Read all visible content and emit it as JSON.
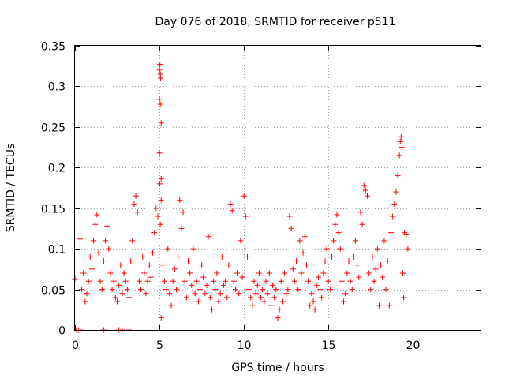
{
  "chart_data": {
    "type": "scatter",
    "title": "Day 076 of 2018, SRMTID for receiver p511",
    "xlabel": "GPS time / hours",
    "ylabel": "SRMTID / TECUs",
    "xlim": [
      0,
      24
    ],
    "ylim": [
      0,
      0.35
    ],
    "xticks": [
      0,
      5,
      10,
      15,
      20
    ],
    "xtick_labels": [
      "0",
      "5",
      "10",
      "15",
      "20"
    ],
    "yticks": [
      0,
      0.05,
      0.1,
      0.15,
      0.2,
      0.25,
      0.3,
      0.35
    ],
    "ytick_labels": [
      "0",
      "0.05",
      "0.1",
      "0.15",
      "0.2",
      "0.25",
      "0.3",
      "0.35"
    ],
    "grid": true,
    "marker": "+",
    "color": "#ff0000",
    "series": [
      {
        "name": "SRMTID",
        "points": [
          [
            0.1,
            0.0
          ],
          [
            0.2,
            0.0
          ],
          [
            0.3,
            0.0
          ],
          [
            1.7,
            0.0
          ],
          [
            2.6,
            0.0
          ],
          [
            2.8,
            0.0
          ],
          [
            3.2,
            0.0
          ],
          [
            0.0,
            0.063
          ],
          [
            0.3,
            0.112
          ],
          [
            0.4,
            0.05
          ],
          [
            0.5,
            0.07
          ],
          [
            0.6,
            0.035
          ],
          [
            0.7,
            0.045
          ],
          [
            0.8,
            0.06
          ],
          [
            0.9,
            0.09
          ],
          [
            1.0,
            0.075
          ],
          [
            1.1,
            0.11
          ],
          [
            1.2,
            0.13
          ],
          [
            1.3,
            0.142
          ],
          [
            1.4,
            0.095
          ],
          [
            1.5,
            0.06
          ],
          [
            1.6,
            0.05
          ],
          [
            1.7,
            0.085
          ],
          [
            1.8,
            0.11
          ],
          [
            1.9,
            0.128
          ],
          [
            2.0,
            0.1
          ],
          [
            2.1,
            0.07
          ],
          [
            2.2,
            0.05
          ],
          [
            2.3,
            0.06
          ],
          [
            2.4,
            0.04
          ],
          [
            2.5,
            0.035
          ],
          [
            2.6,
            0.055
          ],
          [
            2.7,
            0.08
          ],
          [
            2.8,
            0.045
          ],
          [
            2.9,
            0.07
          ],
          [
            3.0,
            0.06
          ],
          [
            3.1,
            0.05
          ],
          [
            3.2,
            0.04
          ],
          [
            3.3,
            0.085
          ],
          [
            3.4,
            0.11
          ],
          [
            3.5,
            0.155
          ],
          [
            3.6,
            0.165
          ],
          [
            3.7,
            0.145
          ],
          [
            3.8,
            0.06
          ],
          [
            3.9,
            0.05
          ],
          [
            4.0,
            0.09
          ],
          [
            4.1,
            0.07
          ],
          [
            4.2,
            0.045
          ],
          [
            4.3,
            0.06
          ],
          [
            4.4,
            0.08
          ],
          [
            4.5,
            0.065
          ],
          [
            4.6,
            0.095
          ],
          [
            4.7,
            0.12
          ],
          [
            4.8,
            0.15
          ],
          [
            4.9,
            0.14
          ],
          [
            5.0,
            0.32
          ],
          [
            5.03,
            0.327
          ],
          [
            5.05,
            0.315
          ],
          [
            5.07,
            0.31
          ],
          [
            5.0,
            0.284
          ],
          [
            5.05,
            0.278
          ],
          [
            5.1,
            0.255
          ],
          [
            5.0,
            0.218
          ],
          [
            5.02,
            0.18
          ],
          [
            5.1,
            0.186
          ],
          [
            5.1,
            0.16
          ],
          [
            5.05,
            0.13
          ],
          [
            5.1,
            0.015
          ],
          [
            5.2,
            0.08
          ],
          [
            5.3,
            0.06
          ],
          [
            5.4,
            0.05
          ],
          [
            5.5,
            0.1
          ],
          [
            5.6,
            0.045
          ],
          [
            5.7,
            0.03
          ],
          [
            5.8,
            0.06
          ],
          [
            5.9,
            0.075
          ],
          [
            6.0,
            0.05
          ],
          [
            6.1,
            0.09
          ],
          [
            6.2,
            0.16
          ],
          [
            6.3,
            0.125
          ],
          [
            6.4,
            0.145
          ],
          [
            6.5,
            0.06
          ],
          [
            6.6,
            0.04
          ],
          [
            6.7,
            0.085
          ],
          [
            6.8,
            0.07
          ],
          [
            6.9,
            0.055
          ],
          [
            7.0,
            0.1
          ],
          [
            7.1,
            0.045
          ],
          [
            7.2,
            0.06
          ],
          [
            7.3,
            0.035
          ],
          [
            7.4,
            0.05
          ],
          [
            7.5,
            0.08
          ],
          [
            7.6,
            0.065
          ],
          [
            7.7,
            0.045
          ],
          [
            7.8,
            0.055
          ],
          [
            7.9,
            0.115
          ],
          [
            8.0,
            0.04
          ],
          [
            8.1,
            0.025
          ],
          [
            8.2,
            0.06
          ],
          [
            8.3,
            0.05
          ],
          [
            8.4,
            0.07
          ],
          [
            8.5,
            0.035
          ],
          [
            8.6,
            0.045
          ],
          [
            8.7,
            0.09
          ],
          [
            8.8,
            0.055
          ],
          [
            8.9,
            0.06
          ],
          [
            9.0,
            0.04
          ],
          [
            9.1,
            0.08
          ],
          [
            9.2,
            0.155
          ],
          [
            9.3,
            0.147
          ],
          [
            9.4,
            0.06
          ],
          [
            9.5,
            0.05
          ],
          [
            9.6,
            0.07
          ],
          [
            9.7,
            0.045
          ],
          [
            9.8,
            0.11
          ],
          [
            9.9,
            0.065
          ],
          [
            10.0,
            0.165
          ],
          [
            10.1,
            0.14
          ],
          [
            10.2,
            0.09
          ],
          [
            10.3,
            0.05
          ],
          [
            10.4,
            0.04
          ],
          [
            10.5,
            0.03
          ],
          [
            10.6,
            0.06
          ],
          [
            10.7,
            0.045
          ],
          [
            10.8,
            0.055
          ],
          [
            10.9,
            0.07
          ],
          [
            11.0,
            0.04
          ],
          [
            11.1,
            0.05
          ],
          [
            11.2,
            0.035
          ],
          [
            11.3,
            0.06
          ],
          [
            11.4,
            0.045
          ],
          [
            11.5,
            0.07
          ],
          [
            11.6,
            0.03
          ],
          [
            11.7,
            0.055
          ],
          [
            11.8,
            0.04
          ],
          [
            11.9,
            0.05
          ],
          [
            12.0,
            0.015
          ],
          [
            12.1,
            0.025
          ],
          [
            12.2,
            0.06
          ],
          [
            12.3,
            0.035
          ],
          [
            12.4,
            0.07
          ],
          [
            12.5,
            0.045
          ],
          [
            12.6,
            0.05
          ],
          [
            12.7,
            0.14
          ],
          [
            12.8,
            0.125
          ],
          [
            12.9,
            0.075
          ],
          [
            13.0,
            0.06
          ],
          [
            13.1,
            0.085
          ],
          [
            13.2,
            0.05
          ],
          [
            13.3,
            0.11
          ],
          [
            13.4,
            0.07
          ],
          [
            13.5,
            0.095
          ],
          [
            13.6,
            0.115
          ],
          [
            13.7,
            0.08
          ],
          [
            13.8,
            0.06
          ],
          [
            13.9,
            0.03
          ],
          [
            14.0,
            0.045
          ],
          [
            14.1,
            0.035
          ],
          [
            14.2,
            0.025
          ],
          [
            14.3,
            0.055
          ],
          [
            14.4,
            0.065
          ],
          [
            14.5,
            0.05
          ],
          [
            14.6,
            0.04
          ],
          [
            14.7,
            0.07
          ],
          [
            14.8,
            0.085
          ],
          [
            14.9,
            0.1
          ],
          [
            15.0,
            0.06
          ],
          [
            15.1,
            0.05
          ],
          [
            15.2,
            0.09
          ],
          [
            15.3,
            0.11
          ],
          [
            15.4,
            0.13
          ],
          [
            15.5,
            0.142
          ],
          [
            15.6,
            0.12
          ],
          [
            15.7,
            0.1
          ],
          [
            15.8,
            0.06
          ],
          [
            15.9,
            0.035
          ],
          [
            16.0,
            0.045
          ],
          [
            16.1,
            0.07
          ],
          [
            16.2,
            0.085
          ],
          [
            16.3,
            0.06
          ],
          [
            16.4,
            0.05
          ],
          [
            16.5,
            0.09
          ],
          [
            16.6,
            0.11
          ],
          [
            16.7,
            0.08
          ],
          [
            16.8,
            0.065
          ],
          [
            16.9,
            0.145
          ],
          [
            17.0,
            0.13
          ],
          [
            17.1,
            0.178
          ],
          [
            17.2,
            0.172
          ],
          [
            17.3,
            0.165
          ],
          [
            17.4,
            0.07
          ],
          [
            17.5,
            0.05
          ],
          [
            17.6,
            0.09
          ],
          [
            17.7,
            0.06
          ],
          [
            17.8,
            0.075
          ],
          [
            17.9,
            0.1
          ],
          [
            18.0,
            0.03
          ],
          [
            18.1,
            0.08
          ],
          [
            18.2,
            0.065
          ],
          [
            18.3,
            0.11
          ],
          [
            18.4,
            0.05
          ],
          [
            18.5,
            0.085
          ],
          [
            18.6,
            0.03
          ],
          [
            18.7,
            0.12
          ],
          [
            18.8,
            0.14
          ],
          [
            18.9,
            0.155
          ],
          [
            19.0,
            0.17
          ],
          [
            19.1,
            0.19
          ],
          [
            19.2,
            0.215
          ],
          [
            19.25,
            0.232
          ],
          [
            19.3,
            0.238
          ],
          [
            19.35,
            0.225
          ],
          [
            19.4,
            0.07
          ],
          [
            19.45,
            0.04
          ],
          [
            19.5,
            0.12
          ],
          [
            19.6,
            0.118
          ],
          [
            19.7,
            0.1
          ]
        ]
      }
    ]
  }
}
